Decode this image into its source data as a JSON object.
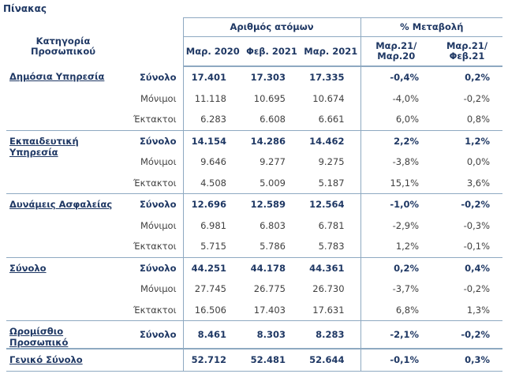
{
  "caption": "Πίνακας",
  "header": {
    "category": "Κατηγορία Προσωπικού",
    "group_count": "Αριθμός ατόμων",
    "group_change": "% Μεταβολή",
    "cols": [
      "Μαρ. 2020",
      "Φεβ. 2021",
      "Μαρ. 2021",
      "Μαρ.21/ Μαρ.20",
      "Μαρ.21/ Φεβ.21"
    ]
  },
  "groups": [
    {
      "name": "Δημόσια Υπηρεσία",
      "rows": [
        {
          "type": "Σύνολο",
          "v": [
            "17.401",
            "17.303",
            "17.335",
            "-0,4%",
            "0,2%"
          ]
        },
        {
          "type": "Μόνιμοι",
          "v": [
            "11.118",
            "10.695",
            "10.674",
            "-4,0%",
            "-0,2%"
          ]
        },
        {
          "type": "Έκτακτοι",
          "v": [
            "6.283",
            "6.608",
            "6.661",
            "6,0%",
            "0,8%"
          ]
        }
      ]
    },
    {
      "name": "Εκπαιδευτική Υπηρεσία",
      "rows": [
        {
          "type": "Σύνολο",
          "v": [
            "14.154",
            "14.286",
            "14.462",
            "2,2%",
            "1,2%"
          ]
        },
        {
          "type": "Μόνιμοι",
          "v": [
            "9.646",
            "9.277",
            "9.275",
            "-3,8%",
            "0,0%"
          ]
        },
        {
          "type": "Έκτακτοι",
          "v": [
            "4.508",
            "5.009",
            "5.187",
            "15,1%",
            "3,6%"
          ]
        }
      ]
    },
    {
      "name": "Δυνάμεις Ασφαλείας",
      "rows": [
        {
          "type": "Σύνολο",
          "v": [
            "12.696",
            "12.589",
            "12.564",
            "-1,0%",
            "-0,2%"
          ]
        },
        {
          "type": "Μόνιμοι",
          "v": [
            "6.981",
            "6.803",
            "6.781",
            "-2,9%",
            "-0,3%"
          ]
        },
        {
          "type": "Έκτακτοι",
          "v": [
            "5.715",
            "5.786",
            "5.783",
            "1,2%",
            "-0,1%"
          ]
        }
      ]
    },
    {
      "name": "Σύνολο",
      "rows": [
        {
          "type": "Σύνολο",
          "v": [
            "44.251",
            "44.178",
            "44.361",
            "0,2%",
            "0,4%"
          ]
        },
        {
          "type": "Μόνιμοι",
          "v": [
            "27.745",
            "26.775",
            "26.730",
            "-3,7%",
            "-0,2%"
          ]
        },
        {
          "type": "Έκτακτοι",
          "v": [
            "16.506",
            "17.403",
            "17.631",
            "6,8%",
            "1,3%"
          ]
        }
      ]
    },
    {
      "name": "Ωρομίσθιο Προσωπικό",
      "rows": [
        {
          "type": "Σύνολο",
          "v": [
            "8.461",
            "8.303",
            "8.283",
            "-2,1%",
            "-0,2%"
          ]
        }
      ]
    }
  ],
  "grand_total": {
    "name": "Γενικό Σύνολο",
    "v": [
      "52.712",
      "52.481",
      "52.644",
      "-0,1%",
      "0,3%"
    ]
  }
}
